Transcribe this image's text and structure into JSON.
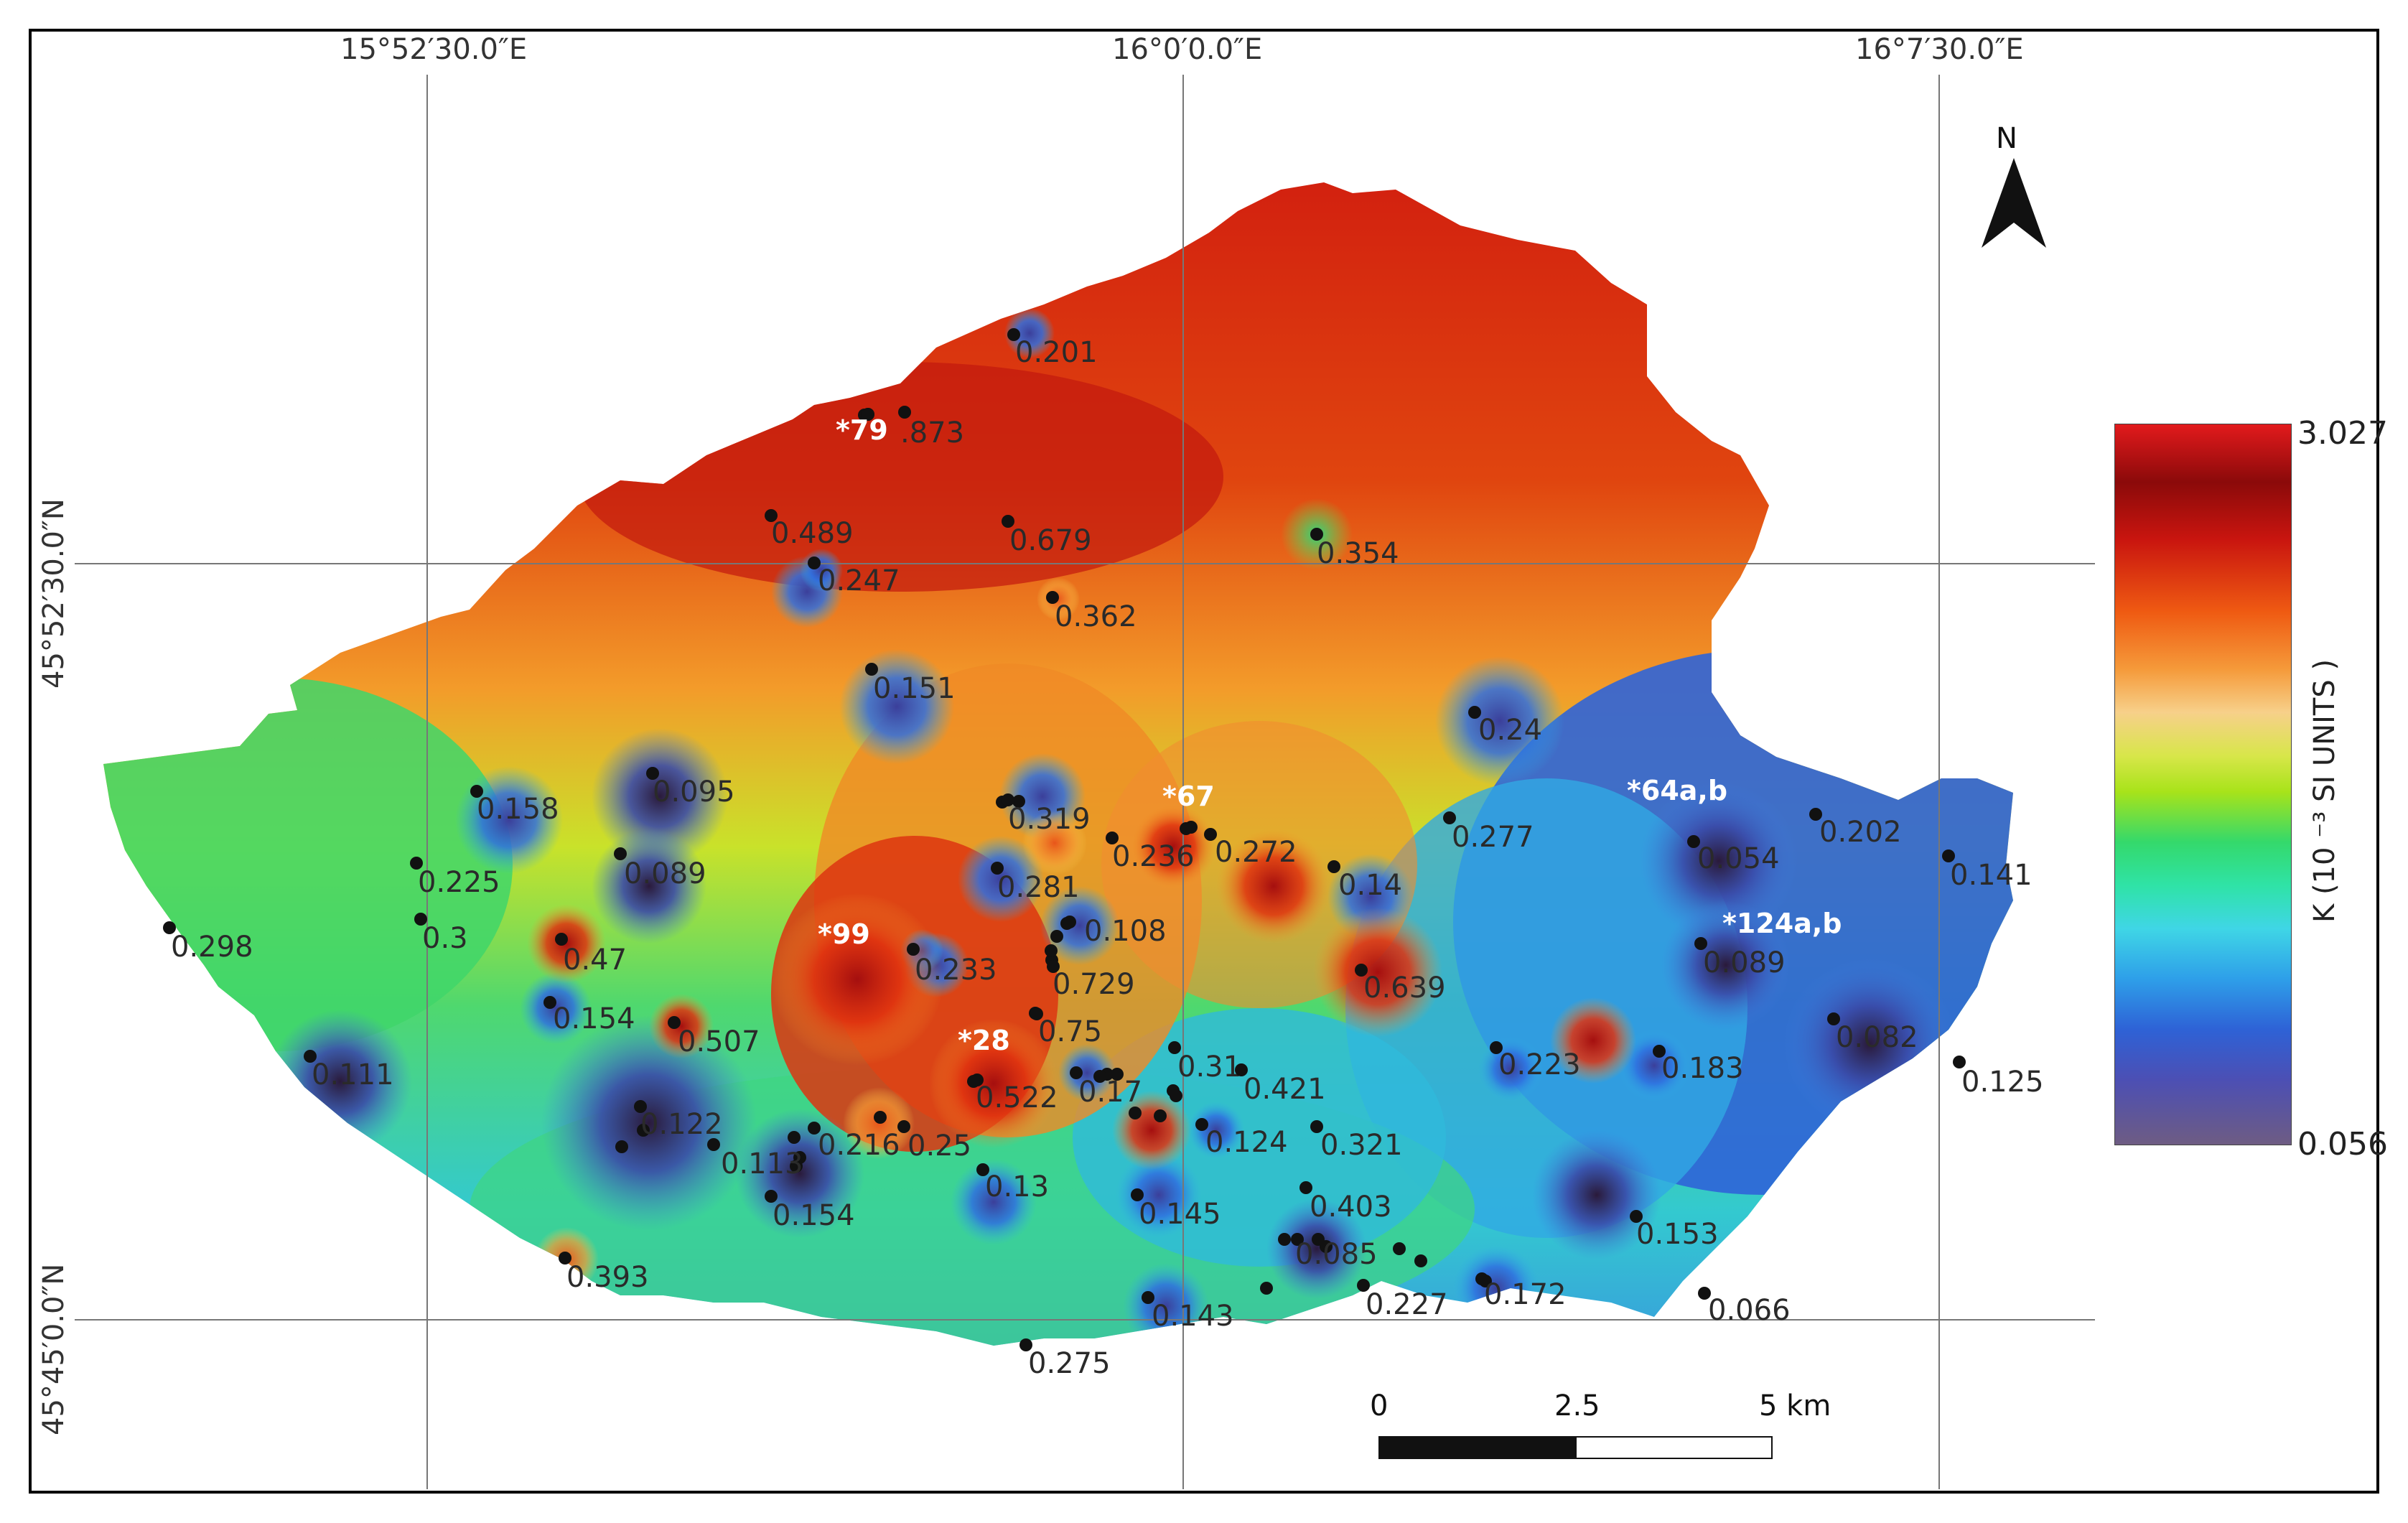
{
  "coordinates": {
    "lon_labels": [
      "15°52′30.0″E",
      "16°0′0.0″E",
      "16°7′30.0″E"
    ],
    "lat_labels": [
      "45°52′30.0″N",
      "45°45′0.0″N"
    ]
  },
  "legend": {
    "max_label": "3.027",
    "min_label": "0.056",
    "title": "K  (10 ⁻³ SI UNITS )"
  },
  "north_arrow": {
    "label": "N"
  },
  "scale_bar": {
    "labels": [
      "0",
      "2.5",
      "5 km"
    ]
  },
  "sample_points": [
    {
      "value": "0.201"
    },
    {
      "value": ".873"
    },
    {
      "value": "0.489"
    },
    {
      "value": "0.679"
    },
    {
      "value": "0.247"
    },
    {
      "value": "0.354"
    },
    {
      "value": "0.362"
    },
    {
      "value": "0.151"
    },
    {
      "value": "0.24"
    },
    {
      "value": "0.158"
    },
    {
      "value": "0.095"
    },
    {
      "value": "0.319"
    },
    {
      "value": "0.236"
    },
    {
      "value": "0.272"
    },
    {
      "value": "0.277"
    },
    {
      "value": "0.054"
    },
    {
      "value": "0.202"
    },
    {
      "value": "0.141"
    },
    {
      "value": "0.225"
    },
    {
      "value": "0.089"
    },
    {
      "value": "0.281"
    },
    {
      "value": "0.14"
    },
    {
      "value": "0.298"
    },
    {
      "value": "0.3"
    },
    {
      "value": "0.108"
    },
    {
      "value": "0.47"
    },
    {
      "value": "0.233"
    },
    {
      "value": "0.729"
    },
    {
      "value": "0.639"
    },
    {
      "value": "0.089"
    },
    {
      "value": "0.154"
    },
    {
      "value": "0.75"
    },
    {
      "value": "0.082"
    },
    {
      "value": "0.507"
    },
    {
      "value": "0.111"
    },
    {
      "value": "0.31"
    },
    {
      "value": "0.223"
    },
    {
      "value": "0.183"
    },
    {
      "value": "0.522"
    },
    {
      "value": "0.17"
    },
    {
      "value": "0.421"
    },
    {
      "value": "0.125"
    },
    {
      "value": "0.122"
    },
    {
      "value": "0.216"
    },
    {
      "value": "0.25"
    },
    {
      "value": "0.124"
    },
    {
      "value": "0.321"
    },
    {
      "value": "0.113"
    },
    {
      "value": "0.13"
    },
    {
      "value": "0.154"
    },
    {
      "value": "0.145"
    },
    {
      "value": "0.403"
    },
    {
      "value": "0.153"
    },
    {
      "value": "0.085"
    },
    {
      "value": "0.393"
    },
    {
      "value": "0.227"
    },
    {
      "value": "0.172"
    },
    {
      "value": "0.066"
    },
    {
      "value": "0.143"
    },
    {
      "value": "0.275"
    }
  ],
  "site_labels": [
    "*79",
    "*67",
    "*64a,b",
    "*124a,b",
    "*99",
    "*28"
  ]
}
